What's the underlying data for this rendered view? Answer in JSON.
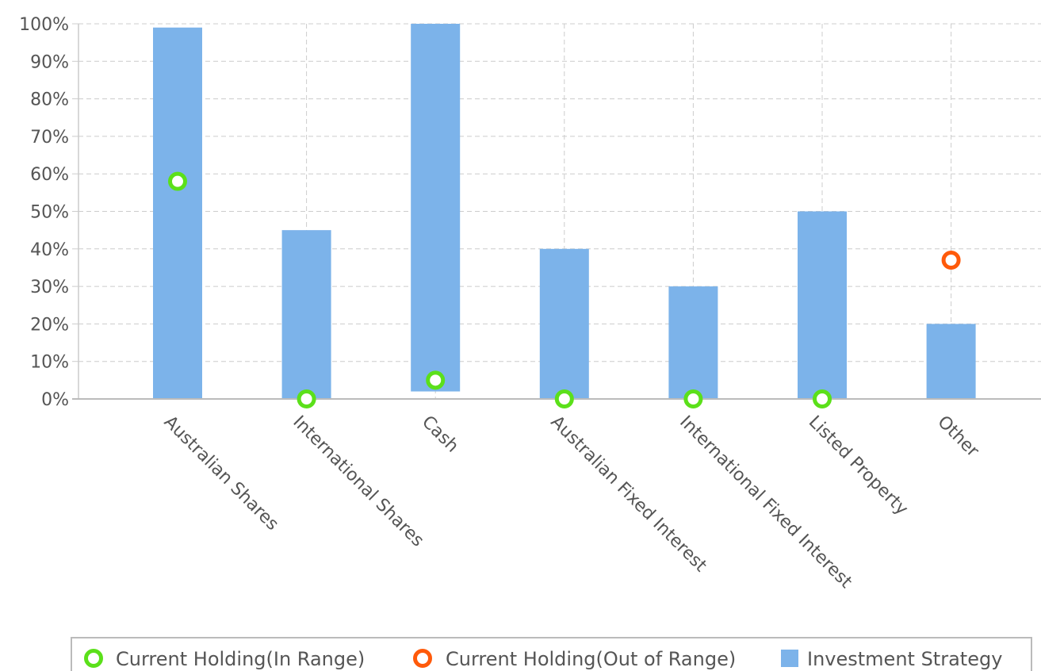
{
  "chart_data": {
    "type": "bar",
    "categories": [
      "Australian Shares",
      "International Shares",
      "Cash",
      "Australian Fixed Interest",
      "International Fixed Interest",
      "Listed Property",
      "Other"
    ],
    "ylim": [
      0,
      100
    ],
    "y_ticks": [
      "0%",
      "10%",
      "20%",
      "30%",
      "40%",
      "50%",
      "60%",
      "70%",
      "80%",
      "90%",
      "100%"
    ],
    "grid": true,
    "legend_position": "bottom",
    "series": [
      {
        "name": "Investment Strategy",
        "kind": "range-bar",
        "color": "#7cb3ea",
        "ranges": [
          [
            0,
            99
          ],
          [
            0,
            45
          ],
          [
            2,
            100
          ],
          [
            0,
            40
          ],
          [
            0,
            30
          ],
          [
            0,
            50
          ],
          [
            0,
            20
          ]
        ]
      },
      {
        "name": "Current Holding(In Range)",
        "kind": "point",
        "color": "#5be01a",
        "points": [
          {
            "category": "Australian Shares",
            "value": 58
          },
          {
            "category": "International Shares",
            "value": 0
          },
          {
            "category": "Cash",
            "value": 5
          },
          {
            "category": "Australian Fixed Interest",
            "value": 0
          },
          {
            "category": "International Fixed Interest",
            "value": 0
          },
          {
            "category": "Listed Property",
            "value": 0
          }
        ]
      },
      {
        "name": "Current Holding(Out of Range)",
        "kind": "point",
        "color": "#ff5a0a",
        "points": [
          {
            "category": "Other",
            "value": 37
          }
        ]
      }
    ],
    "legend": [
      {
        "label": "Current Holding(In Range)",
        "symbol": "circle",
        "color": "#5be01a"
      },
      {
        "label": "Current Holding(Out of Range)",
        "symbol": "circle",
        "color": "#ff5a0a"
      },
      {
        "label": "Investment Strategy",
        "symbol": "square",
        "color": "#7cb3ea"
      }
    ]
  }
}
